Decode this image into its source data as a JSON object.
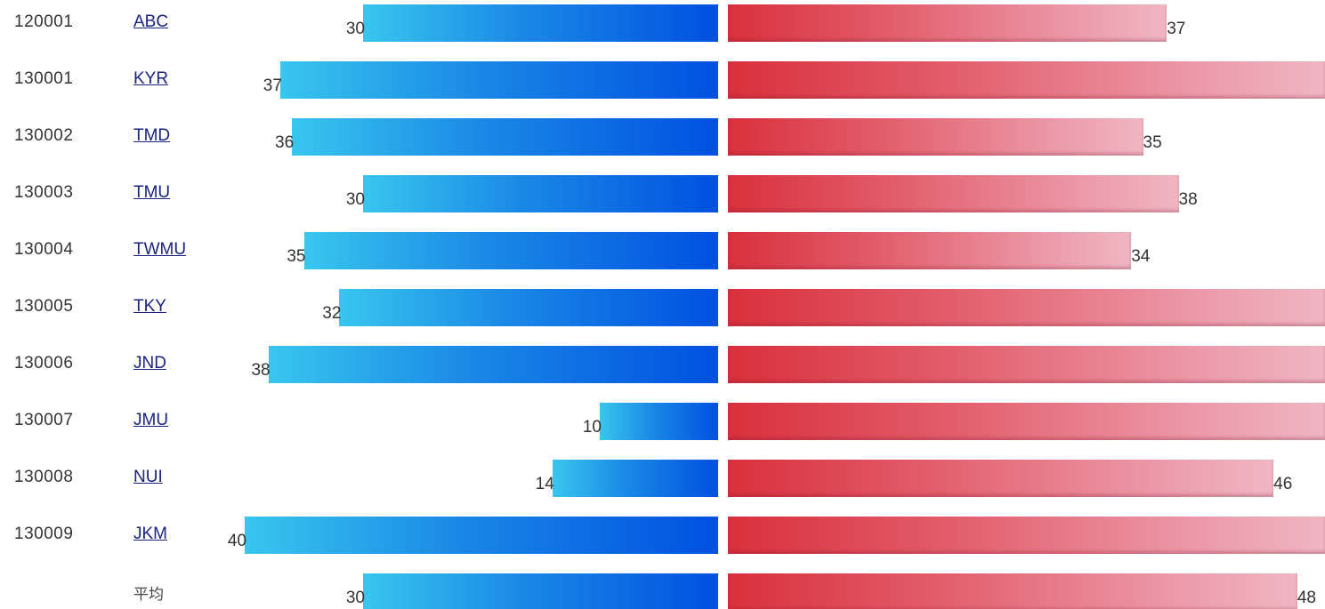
{
  "chart_data": {
    "type": "bar",
    "categories": [
      {
        "code": "120001",
        "name": "ABC",
        "link": true
      },
      {
        "code": "130001",
        "name": "KYR",
        "link": true
      },
      {
        "code": "130002",
        "name": "TMD",
        "link": true
      },
      {
        "code": "130003",
        "name": "TMU",
        "link": true
      },
      {
        "code": "130004",
        "name": "TWMU",
        "link": true
      },
      {
        "code": "130005",
        "name": "TKY",
        "link": true
      },
      {
        "code": "130006",
        "name": "JND",
        "link": true
      },
      {
        "code": "130007",
        "name": "JMU",
        "link": true
      },
      {
        "code": "130008",
        "name": "NUI",
        "link": true
      },
      {
        "code": "130009",
        "name": "JKM",
        "link": true
      },
      {
        "code": "",
        "name": "平均",
        "link": false
      }
    ],
    "series": [
      {
        "values": [
          30,
          37,
          36,
          30,
          35,
          32,
          38,
          10,
          14,
          40,
          30
        ],
        "labels": [
          "30",
          "37",
          "36",
          "30",
          "35",
          "32",
          "38",
          "10",
          "14",
          "40",
          "30"
        ],
        "color_start": "#38c6ee",
        "color_end": "#0050e0"
      },
      {
        "values": [
          37,
          52,
          35,
          38,
          34,
          52,
          52,
          52,
          46,
          52,
          48
        ],
        "labels": [
          "37",
          "",
          "35",
          "38",
          "34",
          "",
          "",
          "",
          "46",
          "",
          "48"
        ],
        "color_start": "#d9303c",
        "color_end": "#f0b6c2"
      }
    ],
    "orientation": "horizontal-diverging",
    "title": "",
    "xlabel": "",
    "ylabel": ""
  }
}
